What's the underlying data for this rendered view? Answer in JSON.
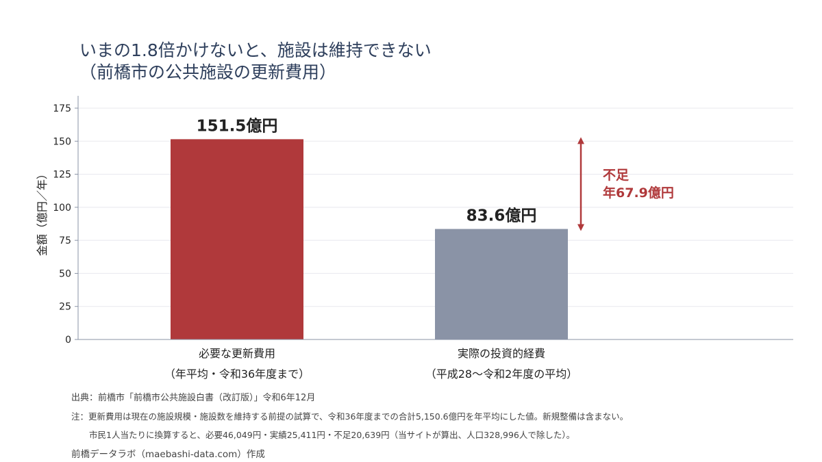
{
  "title_line1": "いまの1.8倍かけないと、施設は維持できない",
  "title_line2": "（前橋市の公共施設の更新費用）",
  "colors": {
    "bar_required": "#b0393b",
    "bar_actual": "#8a93a6",
    "shortfall": "#b0393b",
    "axis": "#8a93a6",
    "grid": "#e8e8ee",
    "title": "#2e3f5c"
  },
  "chart_data": {
    "type": "bar",
    "ylabel": "金額（億円／年）",
    "ylim": [
      0,
      175
    ],
    "yticks": [
      0,
      25,
      50,
      75,
      100,
      125,
      150,
      175
    ],
    "grid": true,
    "categories": [
      [
        "必要な更新費用",
        "（年平均・令和36年度まで）"
      ],
      [
        "実際の投資的経費",
        "（平成28〜令和2年度の平均）"
      ]
    ],
    "values": [
      151.5,
      83.6
    ],
    "value_labels": [
      "151.5億円",
      "83.6億円"
    ],
    "annotation": {
      "type": "double-arrow",
      "from": 83.6,
      "to": 151.5,
      "label_line1": "不足",
      "label_line2": "年67.9億円"
    }
  },
  "source": "出典：前橋市「前橋市公共施設白書（改訂版）」令和6年12月",
  "note1": "注：更新費用は現在の施設規模・施設数を維持する前提の試算で、令和36年度までの合計5,150.6億円を年平均にした値。新規整備は含まない。",
  "note2": "市民1人当たりに換算すると、必要46,049円・実績25,411円・不足20,639円（当サイトが算出、人口328,996人で除した）。",
  "credit": "前橋データラボ（maebashi-data.com）作成"
}
